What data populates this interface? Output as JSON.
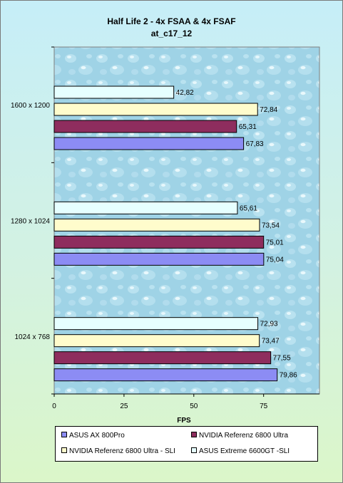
{
  "chart_data": {
    "type": "bar",
    "orientation": "horizontal",
    "title": "Half Life 2 - 4x FSAA & 4x FSAF",
    "subtitle": "at_c17_12",
    "xlabel": "FPS",
    "ylabel": "",
    "xlim": [
      0,
      95
    ],
    "xticks": [
      0,
      25,
      50,
      75
    ],
    "grid": false,
    "legend_position": "bottom",
    "categories": [
      "1600 x 1200",
      "1280 x 1024",
      "1024 x 768"
    ],
    "series": [
      {
        "name": "ASUS AX 800Pro",
        "color": "#8c8cf4",
        "values": [
          67.83,
          75.04,
          79.86
        ],
        "labels": [
          "67,83",
          "75,04",
          "79,86"
        ]
      },
      {
        "name": "NVIDIA  Referenz 6800 Ultra",
        "color": "#8e2d5e",
        "values": [
          65.31,
          75.01,
          77.55
        ],
        "labels": [
          "65,31",
          "75,01",
          "77,55"
        ]
      },
      {
        "name": "NVIDIA  Referenz 6800 Ultra - SLI",
        "color": "#fffccc",
        "values": [
          72.84,
          73.54,
          73.47
        ],
        "labels": [
          "72,84",
          "73,54",
          "73,47"
        ]
      },
      {
        "name": "ASUS Extreme 6600GT -SLI",
        "color": "#e6ffff",
        "values": [
          42.82,
          65.61,
          72.93
        ],
        "labels": [
          "42,82",
          "65,61",
          "72,93"
        ]
      }
    ]
  }
}
